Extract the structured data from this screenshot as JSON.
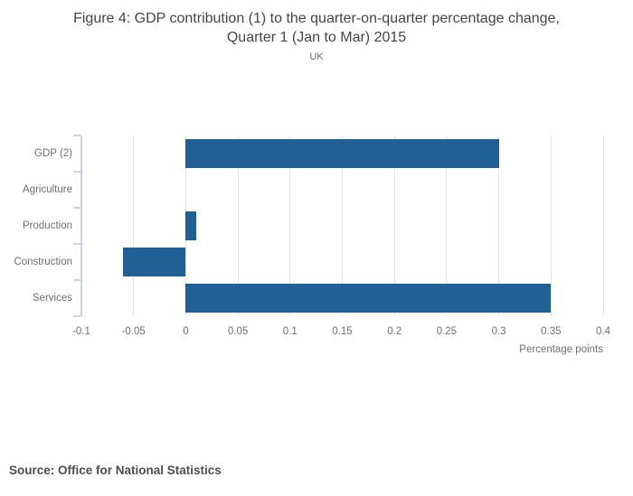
{
  "title": {
    "line1": "Figure 4: GDP contribution (1) to the quarter-on-quarter percentage change,",
    "line2": "Quarter 1 (Jan to Mar) 2015"
  },
  "subtitle": "UK",
  "source": "Source: Office for National Statistics",
  "colors": {
    "bar": "#206095",
    "gridline": "#e3e3e3",
    "axis": "#c8d4e3",
    "tick_text": "#6e6e6e",
    "title_text": "#454545",
    "source_text": "#4d4d4d"
  },
  "chart_data": {
    "type": "bar",
    "orientation": "horizontal",
    "title": "Figure 4: GDP contribution (1) to the quarter-on-quarter percentage change, Quarter 1 (Jan to Mar) 2015",
    "subtitle": "UK",
    "categories": [
      "GDP (2)",
      "Agriculture",
      "Production",
      "Construction",
      "Services"
    ],
    "values": [
      0.3,
      0,
      0.01,
      -0.06,
      0.35
    ],
    "xlabel": "Percentage points",
    "ylabel": "",
    "xlim": [
      -0.1,
      0.4
    ],
    "x_ticks": [
      -0.1,
      -0.05,
      0,
      0.05,
      0.1,
      0.15,
      0.2,
      0.25,
      0.3,
      0.35,
      0.4
    ],
    "x_tick_labels": [
      "-0.1",
      "-0.05",
      "0",
      "0.05",
      "0.1",
      "0.15",
      "0.2",
      "0.25",
      "0.3",
      "0.35",
      "0.4"
    ],
    "grid": true,
    "legend": false,
    "bar_color": "#206095"
  }
}
